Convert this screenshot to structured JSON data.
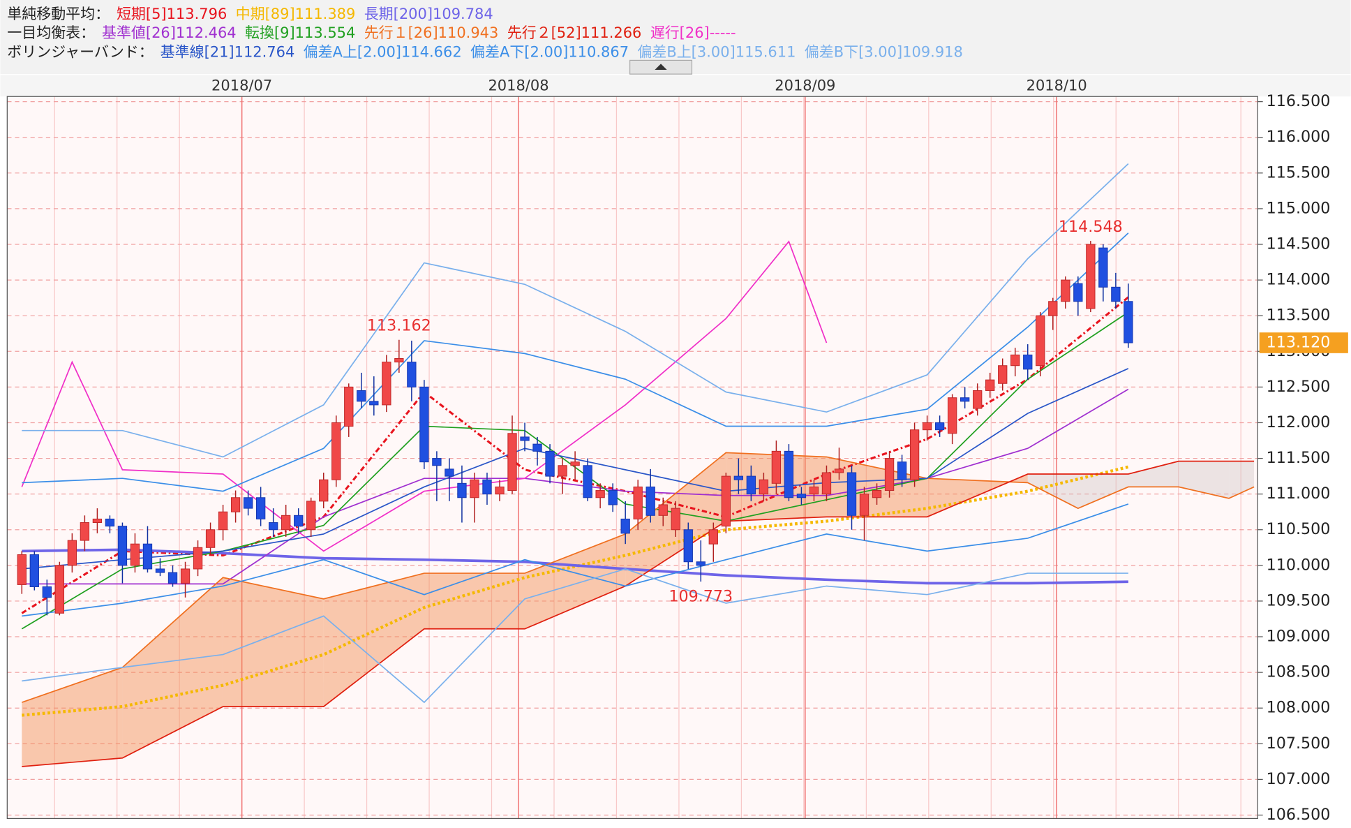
{
  "chart_data": {
    "type": "candlestick",
    "ylim": [
      106.5,
      116.5
    ],
    "yticks": [
      {
        "value": 106.5,
        "label": "106.500"
      },
      {
        "value": 107,
        "label": "107.000"
      },
      {
        "value": 107.5,
        "label": "107.500"
      },
      {
        "value": 108,
        "label": "108.000"
      },
      {
        "value": 108.5,
        "label": "108.500"
      },
      {
        "value": 109,
        "label": "109.000"
      },
      {
        "value": 109.5,
        "label": "109.500"
      },
      {
        "value": 110,
        "label": "110.000"
      },
      {
        "value": 110.5,
        "label": "110.500"
      },
      {
        "value": 111,
        "label": "111.000"
      },
      {
        "value": 111.5,
        "label": "111.500"
      },
      {
        "value": 112,
        "label": "112.000"
      },
      {
        "value": 112.5,
        "label": "112.500"
      },
      {
        "value": 113,
        "label": "113.000"
      },
      {
        "value": 113.5,
        "label": "113.500"
      },
      {
        "value": 114,
        "label": "114.000"
      },
      {
        "value": 114.5,
        "label": "114.500"
      },
      {
        "value": 115,
        "label": "115.000"
      },
      {
        "value": 115.5,
        "label": "115.500"
      },
      {
        "value": 116,
        "label": "116.000"
      },
      {
        "value": 116.5,
        "label": "116.500"
      }
    ],
    "xticks": [
      {
        "value": 17.5,
        "label": "2018/07"
      },
      {
        "value": 39.5,
        "label": "2018/08"
      },
      {
        "value": 62.3,
        "label": "2018/09"
      },
      {
        "value": 82.3,
        "label": "2018/10"
      }
    ],
    "groups": [
      "単純移動平均：",
      "一目均衡表：",
      "ボリンジャーバンド："
    ],
    "ohlc": [
      [
        109.73,
        110.2,
        109.6,
        110.15
      ],
      [
        110.15,
        110.2,
        109.65,
        109.7
      ],
      [
        109.7,
        109.8,
        109.3,
        109.55
      ],
      [
        109.33,
        110.05,
        109.3,
        110.0
      ],
      [
        110.0,
        110.45,
        109.9,
        110.35
      ],
      [
        110.35,
        110.7,
        110.2,
        110.6
      ],
      [
        110.6,
        110.8,
        110.45,
        110.65
      ],
      [
        110.65,
        110.7,
        110.45,
        110.55
      ],
      [
        110.55,
        110.6,
        109.75,
        110.0
      ],
      [
        110.0,
        110.45,
        109.9,
        110.3
      ],
      [
        110.3,
        110.55,
        109.9,
        109.95
      ],
      [
        109.95,
        110.1,
        109.85,
        109.9
      ],
      [
        109.9,
        110.0,
        109.7,
        109.75
      ],
      [
        109.75,
        110.05,
        109.55,
        109.95
      ],
      [
        109.95,
        110.35,
        109.85,
        110.25
      ],
      [
        110.25,
        110.6,
        110.15,
        110.5
      ],
      [
        110.5,
        110.85,
        110.35,
        110.75
      ],
      [
        110.75,
        111.05,
        110.6,
        110.95
      ],
      [
        110.95,
        111.05,
        110.7,
        110.8
      ],
      [
        110.95,
        111.1,
        110.55,
        110.65
      ],
      [
        110.6,
        110.8,
        110.4,
        110.5
      ],
      [
        110.5,
        110.85,
        110.4,
        110.7
      ],
      [
        110.7,
        110.8,
        110.45,
        110.55
      ],
      [
        110.5,
        110.95,
        110.4,
        110.9
      ],
      [
        110.9,
        111.3,
        110.8,
        111.2
      ],
      [
        111.2,
        112.1,
        111.1,
        112.0
      ],
      [
        111.95,
        112.55,
        111.8,
        112.5
      ],
      [
        112.45,
        112.7,
        112.2,
        112.3
      ],
      [
        112.3,
        112.65,
        112.1,
        112.25
      ],
      [
        112.25,
        112.95,
        112.15,
        112.85
      ],
      [
        112.85,
        113.162,
        112.7,
        112.9
      ],
      [
        112.85,
        113.15,
        112.3,
        112.5
      ],
      [
        112.5,
        112.6,
        111.35,
        111.45
      ],
      [
        111.5,
        111.6,
        110.9,
        111.4
      ],
      [
        111.35,
        111.5,
        110.9,
        111.25
      ],
      [
        111.15,
        111.4,
        110.6,
        110.95
      ],
      [
        110.95,
        111.3,
        110.6,
        111.2
      ],
      [
        111.2,
        111.3,
        110.85,
        111.0
      ],
      [
        111.0,
        111.2,
        110.9,
        111.1
      ],
      [
        111.05,
        112.1,
        111.0,
        111.85
      ],
      [
        111.8,
        112.0,
        111.6,
        111.75
      ],
      [
        111.7,
        111.8,
        111.4,
        111.6
      ],
      [
        111.6,
        111.7,
        111.15,
        111.25
      ],
      [
        111.25,
        111.5,
        111.0,
        111.4
      ],
      [
        111.4,
        111.6,
        111.2,
        111.45
      ],
      [
        111.4,
        111.5,
        110.9,
        110.95
      ],
      [
        110.95,
        111.15,
        110.8,
        111.05
      ],
      [
        111.05,
        111.15,
        110.75,
        110.85
      ],
      [
        110.65,
        110.9,
        110.3,
        110.45
      ],
      [
        110.65,
        111.2,
        110.5,
        111.1
      ],
      [
        111.1,
        111.35,
        110.6,
        110.7
      ],
      [
        110.7,
        110.95,
        110.55,
        110.85
      ],
      [
        110.5,
        110.9,
        110.4,
        110.8
      ],
      [
        110.5,
        110.6,
        109.95,
        110.05
      ],
      [
        110.05,
        110.35,
        109.773,
        110.0
      ],
      [
        110.3,
        110.6,
        110.05,
        110.5
      ],
      [
        110.55,
        111.3,
        110.45,
        111.25
      ],
      [
        111.25,
        111.5,
        111.0,
        111.2
      ],
      [
        111.25,
        111.4,
        110.9,
        111.0
      ],
      [
        111.0,
        111.3,
        110.9,
        111.2
      ],
      [
        111.15,
        111.75,
        111.0,
        111.6
      ],
      [
        111.6,
        111.7,
        110.9,
        110.95
      ],
      [
        111.0,
        111.1,
        110.85,
        110.95
      ],
      [
        111.0,
        111.2,
        110.9,
        111.1
      ],
      [
        111.0,
        111.4,
        110.9,
        111.3
      ],
      [
        111.3,
        111.65,
        111.2,
        111.35
      ],
      [
        111.3,
        111.4,
        110.5,
        110.7
      ],
      [
        110.7,
        111.1,
        110.35,
        111.0
      ],
      [
        110.95,
        111.15,
        110.85,
        111.05
      ],
      [
        111.05,
        111.6,
        110.95,
        111.5
      ],
      [
        111.45,
        111.55,
        111.1,
        111.2
      ],
      [
        111.2,
        112.0,
        111.1,
        111.9
      ],
      [
        111.9,
        112.1,
        111.75,
        112.0
      ],
      [
        112.0,
        112.1,
        111.8,
        111.9
      ],
      [
        111.85,
        112.4,
        111.7,
        112.35
      ],
      [
        112.35,
        112.5,
        112.2,
        112.3
      ],
      [
        112.2,
        112.55,
        112.1,
        112.45
      ],
      [
        112.45,
        112.7,
        112.35,
        112.6
      ],
      [
        112.55,
        112.9,
        112.45,
        112.8
      ],
      [
        112.8,
        113.05,
        112.65,
        112.95
      ],
      [
        112.95,
        113.1,
        112.6,
        112.75
      ],
      [
        112.8,
        113.55,
        112.65,
        113.5
      ],
      [
        113.5,
        113.75,
        113.3,
        113.7
      ],
      [
        113.7,
        114.05,
        113.6,
        114.0
      ],
      [
        113.95,
        114.05,
        113.5,
        113.7
      ],
      [
        113.6,
        114.548,
        113.55,
        114.5
      ],
      [
        114.45,
        114.5,
        113.7,
        113.9
      ],
      [
        113.9,
        114.1,
        113.6,
        113.7
      ],
      [
        113.7,
        113.95,
        113.05,
        113.12
      ]
    ],
    "up_color": "#f04848",
    "down_color": "#2050e0",
    "series": [
      {
        "name": "短期[5]113.796",
        "color": "#e8141e",
        "x": [
          0,
          8,
          16,
          24,
          32,
          40,
          48,
          56,
          64,
          72,
          80,
          88
        ],
        "values": [
          109.33,
          110.2,
          110.14,
          110.68,
          112.43,
          111.34,
          111.04,
          110.68,
          111.28,
          111.77,
          112.61,
          113.76
        ]
      },
      {
        "name": "中期[89]111.389",
        "color": "#f5b800",
        "x": [
          0,
          8,
          16,
          24,
          32,
          40,
          48,
          56,
          64,
          72,
          80,
          88
        ],
        "values": [
          107.9,
          108.02,
          108.32,
          108.75,
          109.41,
          109.83,
          110.14,
          110.5,
          110.62,
          110.8,
          111.04,
          111.38
        ]
      },
      {
        "name": "長期[200]109.784",
        "color": "#6e64e8",
        "x": [
          0,
          8,
          16,
          24,
          32,
          40,
          48,
          56,
          64,
          72,
          80,
          88
        ],
        "values": [
          110.2,
          110.22,
          110.17,
          110.1,
          110.08,
          110.05,
          109.95,
          109.86,
          109.8,
          109.75,
          109.75,
          109.77
        ]
      },
      {
        "name": "基準値[26]112.464",
        "color": "#a030d0",
        "x": [
          0,
          8,
          16,
          24,
          32,
          40,
          48,
          56,
          64,
          72,
          80,
          88
        ],
        "values": [
          109.74,
          109.74,
          109.74,
          110.68,
          111.22,
          111.22,
          111.04,
          110.98,
          110.98,
          111.22,
          111.64,
          112.47
        ]
      },
      {
        "name": "転換[9]113.554",
        "color": "#20a020",
        "x": [
          0,
          8,
          16,
          24,
          32,
          40,
          48,
          56,
          64,
          72,
          80,
          88
        ],
        "values": [
          109.11,
          109.95,
          110.2,
          110.56,
          111.95,
          111.89,
          110.86,
          110.62,
          110.92,
          111.22,
          112.61,
          113.55
        ]
      },
      {
        "name": "先行１[26]110.943",
        "color": "#f07020",
        "x": [
          0,
          8,
          16,
          24,
          32,
          40,
          48,
          56,
          64,
          72,
          80,
          84,
          88,
          92,
          96,
          98
        ],
        "values": [
          108.08,
          108.57,
          109.83,
          109.53,
          109.89,
          109.89,
          110.44,
          111.58,
          111.52,
          111.22,
          111.16,
          110.8,
          111.1,
          111.1,
          110.94,
          111.1
        ]
      },
      {
        "name": "先行２[52]111.266",
        "color": "#e02010",
        "x": [
          0,
          8,
          16,
          24,
          32,
          40,
          48,
          56,
          64,
          72,
          80,
          84,
          88,
          92,
          96,
          98
        ],
        "values": [
          107.18,
          107.3,
          108.02,
          108.02,
          109.11,
          109.11,
          109.71,
          110.62,
          110.68,
          110.68,
          111.28,
          111.28,
          111.28,
          111.46,
          111.46,
          111.46
        ]
      },
      {
        "name": "遅行[26]-----",
        "color": "#f030c8",
        "x": [
          0,
          4,
          8,
          16,
          24,
          32,
          40,
          48,
          56,
          61,
          64
        ],
        "values": [
          111.1,
          112.85,
          111.34,
          111.28,
          110.2,
          111.04,
          111.22,
          112.25,
          113.46,
          114.54,
          113.12
        ]
      },
      {
        "name": "基準線[21]112.764",
        "color": "#2a56c8",
        "x": [
          0,
          8,
          16,
          24,
          32,
          40,
          48,
          56,
          64,
          72,
          80,
          88
        ],
        "values": [
          109.95,
          110.08,
          110.2,
          110.44,
          111.1,
          111.64,
          111.34,
          111.04,
          111.16,
          111.22,
          112.13,
          112.76
        ]
      },
      {
        "name": "偏差A上[2.00]114.662",
        "color": "#3b8ee8",
        "x": [
          0,
          8,
          16,
          24,
          32,
          40,
          48,
          56,
          64,
          72,
          80,
          88
        ],
        "values": [
          111.16,
          111.22,
          111.04,
          111.64,
          113.15,
          112.97,
          112.61,
          111.95,
          111.95,
          112.19,
          113.34,
          114.66
        ]
      },
      {
        "name": "偏差A下[2.00]110.867",
        "color": "#3b8ee8",
        "x": [
          0,
          8,
          16,
          24,
          32,
          40,
          48,
          56,
          64,
          72,
          80,
          88
        ],
        "values": [
          109.29,
          109.47,
          109.71,
          110.08,
          109.59,
          110.08,
          109.71,
          110.08,
          110.44,
          110.2,
          110.38,
          110.86
        ]
      },
      {
        "name": "偏差B上[3.00]115.611",
        "color": "#7ab0ec",
        "x": [
          0,
          8,
          16,
          24,
          32,
          40,
          48,
          56,
          64,
          72,
          80,
          88
        ],
        "values": [
          111.89,
          111.89,
          111.52,
          112.25,
          114.24,
          113.94,
          113.28,
          112.43,
          112.15,
          112.67,
          114.3,
          115.63
        ]
      },
      {
        "name": "偏差B下[3.00]109.918",
        "color": "#7ab0ec",
        "x": [
          0,
          8,
          16,
          24,
          32,
          40,
          48,
          56,
          64,
          72,
          80,
          88
        ],
        "values": [
          108.38,
          108.57,
          108.75,
          109.29,
          108.08,
          109.53,
          109.95,
          109.47,
          109.71,
          109.59,
          109.89,
          109.89
        ]
      }
    ],
    "annotations": [
      "113.162",
      "109.773",
      "114.548"
    ],
    "last_price": {
      "value": 113.12,
      "label": "113.120"
    },
    "last_color": "#f5a020"
  }
}
